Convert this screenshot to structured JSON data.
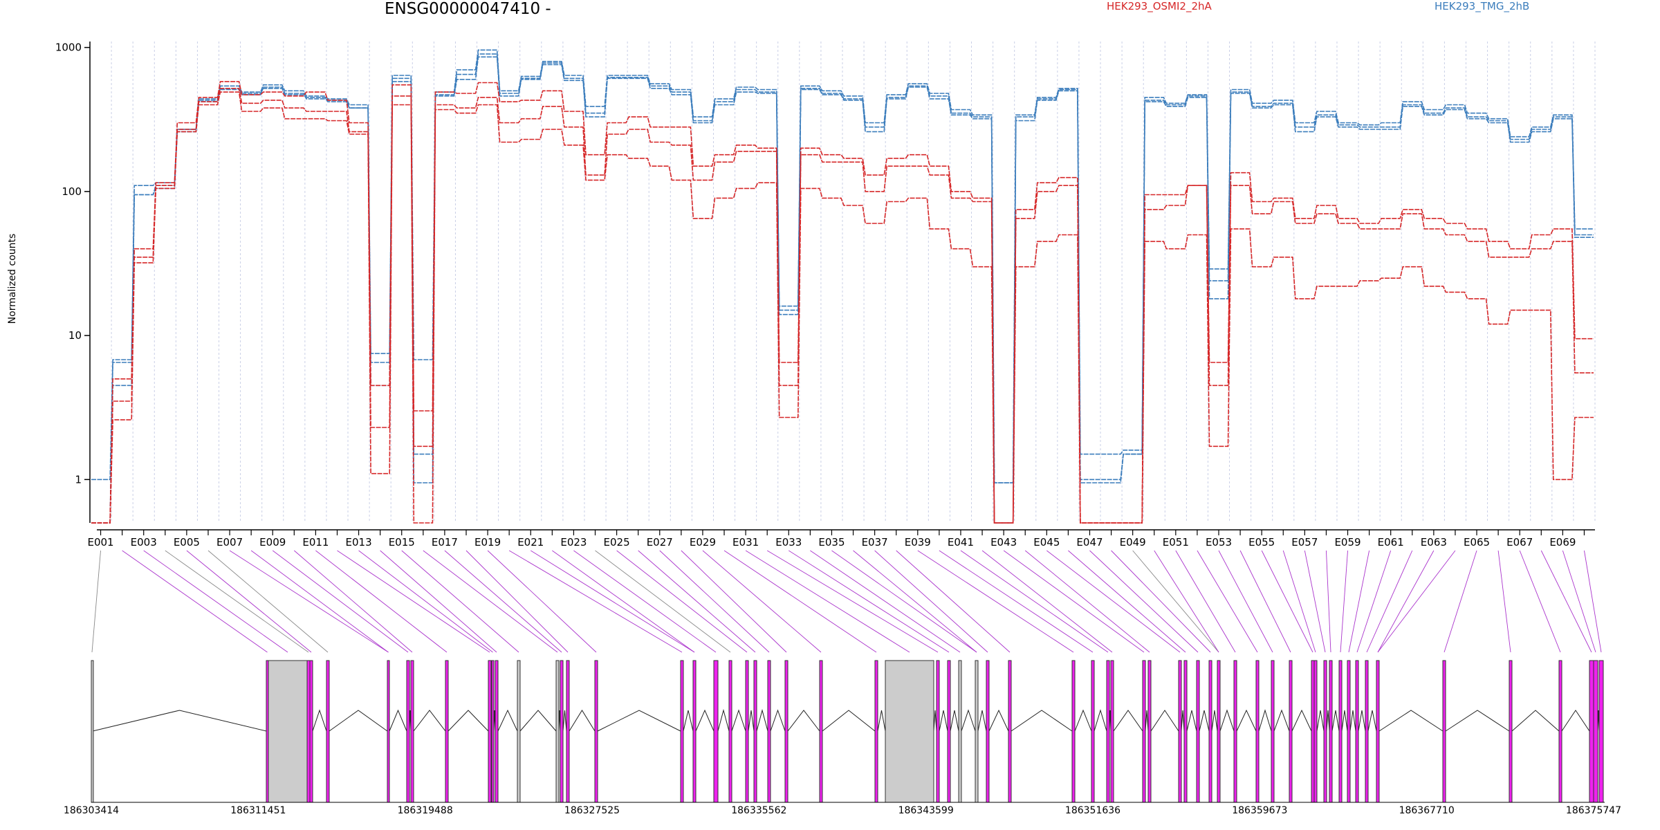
{
  "chart_data": {
    "type": "line",
    "title": "ENSG00000047410 -",
    "ylabel": "Normalized counts",
    "yscale": "log",
    "ylim": [
      0.5,
      1100
    ],
    "yticks": [
      {
        "value": 1,
        "label": "1"
      },
      {
        "value": 10,
        "label": "10"
      },
      {
        "value": 100,
        "label": "100"
      },
      {
        "value": 1000,
        "label": "1000"
      }
    ],
    "grid": "vertical-dashed",
    "colors": {
      "HEK293_OSMI2_2hA": "#d62728",
      "HEK293_TMG_2hB": "#3b7dbc",
      "exon": "#ee22ee",
      "intron": "#000000",
      "noncounted": "#cccccc"
    },
    "legend": [
      {
        "name": "HEK293_OSMI2_2hA",
        "color": "#d62728"
      },
      {
        "name": "HEK293_TMG_2hB",
        "color": "#3b7dbc"
      }
    ],
    "categories": [
      "E001",
      "E002",
      "E003",
      "E004",
      "E005",
      "E006",
      "E007",
      "E008",
      "E009",
      "E010",
      "E011",
      "E012",
      "E013",
      "E014",
      "E015",
      "E016",
      "E017",
      "E018",
      "E019",
      "E020",
      "E021",
      "E022",
      "E023",
      "E024",
      "E025",
      "E026",
      "E027",
      "E028",
      "E029",
      "E030",
      "E031",
      "E032",
      "E033",
      "E034",
      "E035",
      "E036",
      "E037",
      "E038",
      "E039",
      "E040",
      "E041",
      "E042",
      "E043",
      "E044",
      "E045",
      "E046",
      "E047",
      "E048",
      "E049",
      "E050",
      "E051",
      "E052",
      "E053",
      "E054",
      "E055",
      "E056",
      "E057",
      "E058",
      "E059",
      "E060",
      "E061",
      "E062",
      "E063",
      "E064",
      "E065",
      "E066",
      "E067",
      "E068",
      "E069",
      "E070"
    ],
    "xtick_labels": [
      "E001",
      "E003",
      "E005",
      "E007",
      "E009",
      "E011",
      "E013",
      "E015",
      "E017",
      "E019",
      "E021",
      "E023",
      "E025",
      "E027",
      "E029",
      "E031",
      "E033",
      "E035",
      "E037",
      "E039",
      "E041",
      "E043",
      "E045",
      "E047",
      "E049",
      "E051",
      "E053",
      "E055",
      "E057",
      "E059",
      "E061",
      "E063",
      "E065",
      "E067",
      "E069"
    ],
    "series": [
      {
        "name": "HEK293_TMG_2hB",
        "group": "HEK293_TMG_2hB",
        "values": [
          1.0,
          6.8,
          110,
          115,
          270,
          440,
          540,
          490,
          550,
          500,
          460,
          440,
          400,
          7.5,
          640,
          6.8,
          490,
          700,
          960,
          500,
          630,
          800,
          640,
          390,
          640,
          640,
          560,
          510,
          330,
          440,
          530,
          510,
          16,
          540,
          500,
          460,
          300,
          470,
          560,
          480,
          370,
          340,
          0.95,
          340,
          450,
          520,
          1.5,
          1.5,
          1.6,
          450,
          410,
          470,
          29,
          510,
          410,
          430,
          300,
          360,
          300,
          290,
          300,
          420,
          370,
          400,
          350,
          320,
          240,
          280,
          340,
          55
        ]
      },
      {
        "name": "HEK293_TMG_2hB",
        "group": "HEK293_TMG_2hB",
        "values": [
          0.5,
          4.5,
          95,
          110,
          260,
          420,
          520,
          470,
          530,
          480,
          440,
          430,
          380,
          6.5,
          610,
          1.5,
          470,
          650,
          900,
          480,
          610,
          780,
          610,
          350,
          620,
          620,
          540,
          490,
          310,
          420,
          510,
          490,
          15,
          520,
          480,
          440,
          280,
          450,
          540,
          460,
          350,
          330,
          0.95,
          330,
          440,
          510,
          1.0,
          1.0,
          1.5,
          430,
          400,
          460,
          24,
          490,
          390,
          410,
          280,
          340,
          290,
          280,
          280,
          400,
          350,
          380,
          330,
          310,
          230,
          270,
          330,
          50
        ]
      },
      {
        "name": "HEK293_TMG_2hB",
        "group": "HEK293_TMG_2hB",
        "values": [
          0.5,
          6.5,
          95,
          105,
          270,
          430,
          510,
          480,
          520,
          470,
          450,
          420,
          380,
          4.5,
          580,
          0.95,
          460,
          600,
          860,
          460,
          600,
          760,
          590,
          330,
          610,
          610,
          520,
          470,
          300,
          400,
          490,
          480,
          14,
          510,
          470,
          430,
          260,
          440,
          530,
          440,
          340,
          320,
          0.5,
          310,
          430,
          500,
          0.95,
          0.95,
          1.5,
          420,
          390,
          450,
          18,
          480,
          380,
          400,
          260,
          330,
          280,
          270,
          270,
          390,
          340,
          370,
          320,
          300,
          220,
          260,
          320,
          48
        ]
      },
      {
        "name": "HEK293_OSMI2_2hA",
        "group": "HEK293_OSMI2_2hA",
        "values": [
          0.5,
          5.0,
          40,
          115,
          300,
          450,
          580,
          470,
          490,
          460,
          490,
          430,
          300,
          4.5,
          550,
          3.0,
          490,
          480,
          570,
          420,
          430,
          500,
          360,
          180,
          300,
          330,
          280,
          280,
          150,
          180,
          210,
          200,
          6.5,
          200,
          180,
          170,
          130,
          170,
          180,
          150,
          100,
          90,
          0.5,
          75,
          115,
          125,
          0.5,
          0.5,
          0.5,
          95,
          95,
          110,
          6.5,
          135,
          85,
          90,
          65,
          80,
          65,
          60,
          65,
          75,
          65,
          60,
          55,
          45,
          40,
          50,
          55,
          9.5
        ]
      },
      {
        "name": "HEK293_OSMI2_2hA",
        "group": "HEK293_OSMI2_2hA",
        "values": [
          0.5,
          3.5,
          35,
          110,
          270,
          420,
          520,
          410,
          430,
          380,
          360,
          360,
          260,
          2.3,
          460,
          1.7,
          400,
          380,
          450,
          300,
          320,
          390,
          280,
          130,
          250,
          270,
          220,
          210,
          120,
          160,
          190,
          190,
          4.5,
          180,
          160,
          160,
          100,
          150,
          150,
          130,
          90,
          85,
          0.5,
          65,
          100,
          110,
          0.5,
          0.5,
          0.5,
          75,
          80,
          110,
          4.5,
          110,
          70,
          85,
          60,
          70,
          60,
          55,
          55,
          70,
          55,
          50,
          45,
          35,
          35,
          40,
          45,
          5.5
        ]
      },
      {
        "name": "HEK293_OSMI2_2hA",
        "group": "HEK293_OSMI2_2hA",
        "values": [
          0.5,
          2.6,
          32,
          105,
          260,
          400,
          490,
          360,
          380,
          320,
          320,
          310,
          250,
          1.1,
          400,
          0.5,
          370,
          350,
          400,
          220,
          230,
          270,
          210,
          120,
          180,
          170,
          150,
          120,
          65,
          90,
          105,
          115,
          2.7,
          105,
          90,
          80,
          60,
          85,
          90,
          55,
          40,
          30,
          0.5,
          30,
          45,
          50,
          0.5,
          0.5,
          0.5,
          45,
          40,
          50,
          1.7,
          55,
          30,
          35,
          18,
          22,
          22,
          24,
          25,
          30,
          22,
          20,
          18,
          12,
          15,
          15,
          1.0,
          2.7
        ]
      }
    ],
    "gene_model": {
      "genomic_axis_ticks": [
        "186303414",
        "186311451",
        "186319488",
        "186327525",
        "186335562",
        "186343599",
        "186351636",
        "186359673",
        "186367710",
        "186375747"
      ],
      "genomic_range": [
        186303414,
        186375747
      ]
    }
  }
}
